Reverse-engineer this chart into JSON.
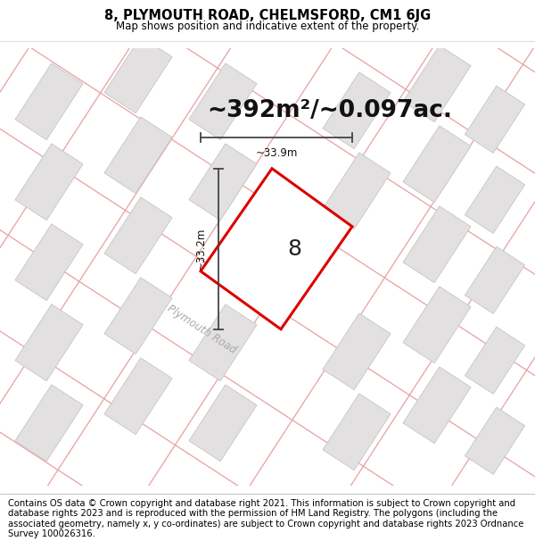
{
  "title": "8, PLYMOUTH ROAD, CHELMSFORD, CM1 6JG",
  "subtitle": "Map shows position and indicative extent of the property.",
  "area_text": "~392m²/~0.097ac.",
  "label_number": "8",
  "dim_vertical": "~33.2m",
  "dim_horizontal": "~33.9m",
  "road_label": "Plymouth Road",
  "footer": "Contains OS data © Crown copyright and database right 2021. This information is subject to Crown copyright and database rights 2023 and is reproduced with the permission of HM Land Registry. The polygons (including the associated geometry, namely x, y co-ordinates) are subject to Crown copyright and database rights 2023 Ordnance Survey 100026316.",
  "map_bg": "#f9f7f7",
  "plot_fill": "#ffffff",
  "plot_edge": "#dd0000",
  "building_fill": "#e2e0e0",
  "building_edge": "#c8c4c4",
  "road_line_color": "#e8a0a0",
  "dim_line_color": "#444444",
  "title_fontsize": 10.5,
  "subtitle_fontsize": 8.5,
  "footer_fontsize": 7.2,
  "area_fontsize": 19,
  "dim_fontsize": 8.5,
  "road_fontsize": 8.5,
  "number_fontsize": 18
}
